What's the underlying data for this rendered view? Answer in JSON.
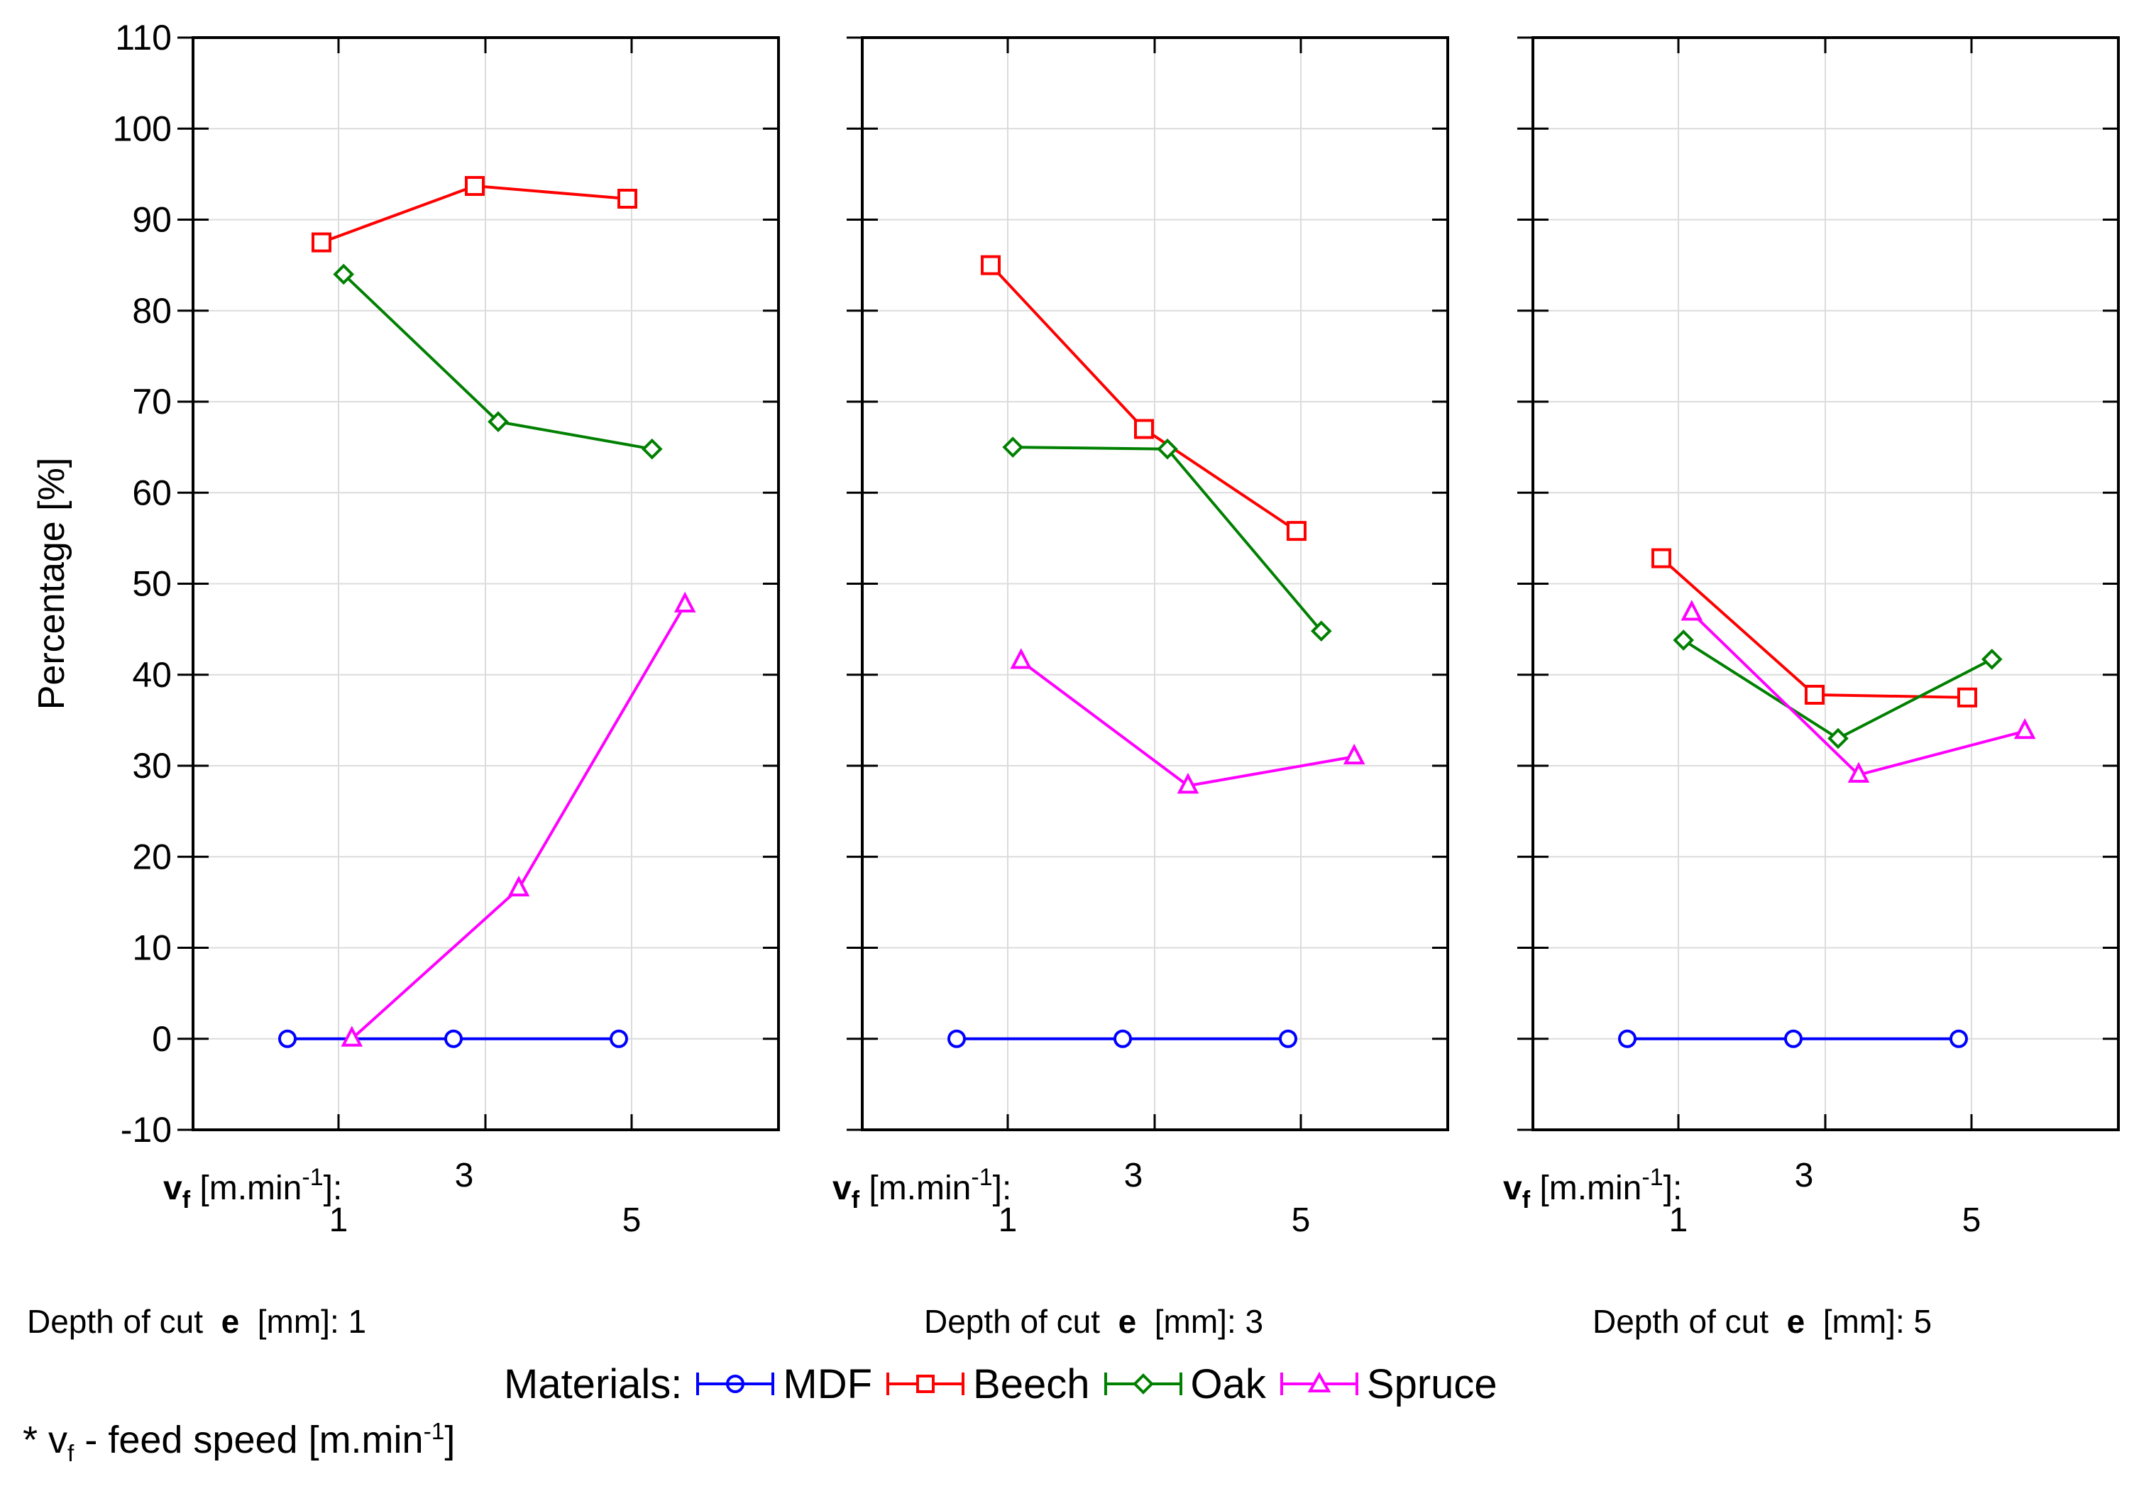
{
  "chart_data": {
    "type": "line",
    "ylabel": "Percentage [%]",
    "ylim": [
      -10,
      110
    ],
    "yticks": [
      -10,
      0,
      10,
      20,
      30,
      40,
      50,
      60,
      70,
      80,
      90,
      100,
      110
    ],
    "grid": true,
    "x_axis_label": {
      "var": "v",
      "sub": "f",
      "unit_prefix": "[m.min",
      "sup": "-1",
      "unit_suffix": "]:"
    },
    "x_categories": [
      1,
      3,
      5
    ],
    "x_tick_labels": [
      "1",
      "3",
      "5"
    ],
    "panels": [
      {
        "depth_label_prefix": "Depth of cut",
        "depth_symbol": "e",
        "depth_label_suffix": "[mm]: 1",
        "series": [
          {
            "name": "MDF",
            "values": [
              0,
              0,
              0
            ]
          },
          {
            "name": "Beech",
            "values": [
              87.5,
              93.7,
              92.3
            ]
          },
          {
            "name": "Oak",
            "values": [
              84,
              67.8,
              64.8
            ]
          },
          {
            "name": "Spruce",
            "values": [
              0,
              16.5,
              47.7
            ]
          }
        ]
      },
      {
        "depth_label_prefix": "Depth of cut",
        "depth_symbol": "e",
        "depth_label_suffix": "[mm]: 3",
        "series": [
          {
            "name": "MDF",
            "values": [
              0,
              0,
              0
            ]
          },
          {
            "name": "Beech",
            "values": [
              85,
              67,
              55.8
            ]
          },
          {
            "name": "Oak",
            "values": [
              65,
              64.8,
              44.8
            ]
          },
          {
            "name": "Spruce",
            "values": [
              41.5,
              27.8,
              31
            ]
          }
        ]
      },
      {
        "depth_label_prefix": "Depth of cut",
        "depth_symbol": "e",
        "depth_label_suffix": "[mm]: 5",
        "series": [
          {
            "name": "MDF",
            "values": [
              0,
              0,
              0
            ]
          },
          {
            "name": "Beech",
            "values": [
              52.8,
              37.8,
              37.5
            ]
          },
          {
            "name": "Oak",
            "values": [
              43.8,
              33,
              41.7
            ]
          },
          {
            "name": "Spruce",
            "values": [
              46.8,
              29,
              33.8
            ]
          }
        ]
      }
    ],
    "legend": {
      "title": "Materials:",
      "placement": "bottom",
      "entries": [
        {
          "name": "MDF",
          "color": "#0000ff",
          "marker": "circle"
        },
        {
          "name": "Beech",
          "color": "#ff0000",
          "marker": "square"
        },
        {
          "name": "Oak",
          "color": "#008000",
          "marker": "diamond"
        },
        {
          "name": "Spruce",
          "color": "#ff00ff",
          "marker": "triangle"
        }
      ]
    },
    "footnote": {
      "prefix": "* v",
      "sub": "f",
      "middle": " - feed speed  [m.min",
      "sup": "-1",
      "suffix": "]"
    }
  }
}
